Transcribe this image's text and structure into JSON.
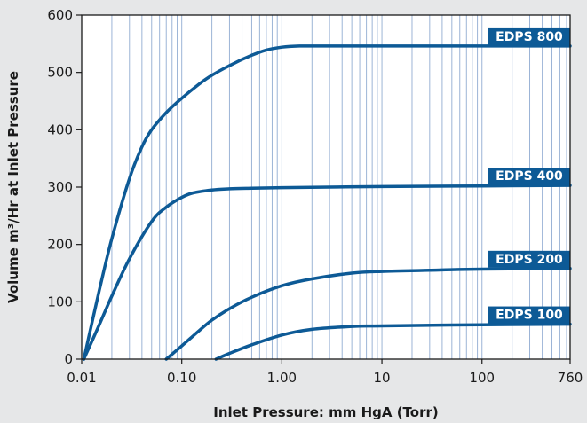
{
  "chart_data": {
    "type": "line",
    "title": "",
    "xlabel": "Inlet Pressure: mm HgA (Torr)",
    "ylabel": "Volume m³/Hr at Inlet Pressure",
    "x_scale": "log",
    "xlim": [
      0.01,
      760
    ],
    "ylim": [
      0,
      600
    ],
    "x_ticks": [
      {
        "value": 0.01,
        "label": "0.01"
      },
      {
        "value": 0.1,
        "label": "0.10"
      },
      {
        "value": 1,
        "label": "1.00"
      },
      {
        "value": 10,
        "label": "10"
      },
      {
        "value": 100,
        "label": "100"
      },
      {
        "value": 760,
        "label": "760"
      }
    ],
    "y_ticks": [
      {
        "value": 0,
        "label": "0"
      },
      {
        "value": 100,
        "label": "100"
      },
      {
        "value": 200,
        "label": "200"
      },
      {
        "value": 300,
        "label": "300"
      },
      {
        "value": 400,
        "label": "400"
      },
      {
        "value": 500,
        "label": "500"
      },
      {
        "value": 600,
        "label": "600"
      }
    ],
    "grid": true,
    "colors": {
      "line": "#0d5a96",
      "label_bg": "#0d5a96",
      "grid": "#9cb4d6",
      "plot_bg": "#ffffff",
      "page_bg": "#e6e7e8"
    },
    "series": [
      {
        "name": "EDPS 800",
        "x": [
          0.0105,
          0.015,
          0.02,
          0.03,
          0.04,
          0.05,
          0.07,
          0.1,
          0.15,
          0.2,
          0.3,
          0.5,
          0.7,
          1.0,
          1.5,
          2,
          5,
          10,
          100,
          760
        ],
        "y": [
          0,
          120,
          210,
          315,
          370,
          400,
          430,
          455,
          480,
          495,
          512,
          530,
          539,
          544,
          546,
          546,
          546,
          546,
          546,
          546
        ]
      },
      {
        "name": "EDPS 400",
        "x": [
          0.0105,
          0.015,
          0.02,
          0.03,
          0.05,
          0.07,
          0.1,
          0.13,
          0.2,
          0.3,
          0.5,
          1,
          10,
          100,
          760
        ],
        "y": [
          0,
          60,
          110,
          175,
          240,
          265,
          282,
          290,
          295,
          297,
          298,
          299,
          301,
          302,
          303
        ]
      },
      {
        "name": "EDPS 200",
        "x": [
          0.07,
          0.1,
          0.15,
          0.2,
          0.3,
          0.5,
          1,
          2,
          5,
          10,
          30,
          100,
          760
        ],
        "y": [
          0,
          23,
          50,
          68,
          88,
          108,
          128,
          140,
          150,
          153,
          155,
          157,
          158
        ]
      },
      {
        "name": "EDPS 100",
        "x": [
          0.22,
          0.3,
          0.5,
          1,
          2,
          5,
          10,
          100,
          760
        ],
        "y": [
          0,
          10,
          25,
          42,
          52,
          57,
          58,
          60,
          61
        ]
      }
    ]
  }
}
